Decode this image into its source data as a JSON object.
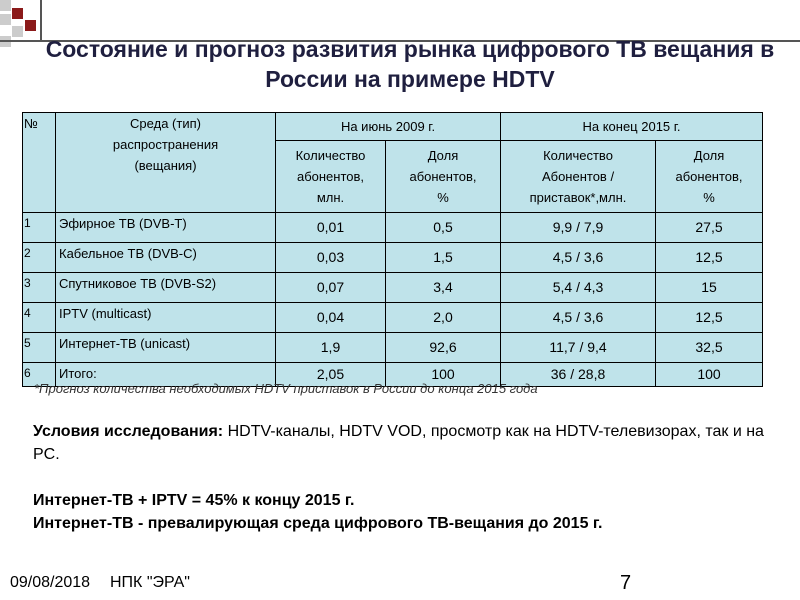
{
  "header": {
    "title": "Состояние и прогноз развития рынка цифрового ТВ вещания в России на примере HDTV"
  },
  "table": {
    "head": [
      "№",
      "Среда (тип)\nраспространения\n(вещания)",
      "На июнь 2009 г.",
      "На конец 2015 г."
    ],
    "subhead": [
      "Количество\nабонентов,\nмлн.",
      "Доля\nабонентов,\n%",
      "Количество\nАбонентов /\nприставок*,млн.",
      "Доля\nабонентов,\n%"
    ],
    "rows": [
      [
        "1",
        "Эфирное ТВ (DVB-T)",
        "0,01",
        "0,5",
        "9,9 / 7,9",
        "27,5"
      ],
      [
        "2",
        "Кабельное ТВ (DVB-C)",
        "0,03",
        "1,5",
        "4,5 / 3,6",
        "12,5"
      ],
      [
        "3",
        "Спутниковое ТВ (DVB-S2)",
        "0,07",
        "3,4",
        "5,4 / 4,3",
        "15"
      ],
      [
        "4",
        "IPTV (multicast)",
        "0,04",
        "2,0",
        "4,5 / 3,6",
        "12,5"
      ],
      [
        "5",
        "Интернет-ТВ (unicast)",
        "1,9",
        "92,6",
        "11,7 / 9,4",
        "32,5"
      ],
      [
        "6",
        "Итого:",
        "2,05",
        "100",
        "36 / 28,8",
        "100"
      ]
    ],
    "footnote": "*Прогноз количества необходимых HDTV приставок в России до конца 2015 года"
  },
  "body": {
    "conditions_label": "Условия исследования:",
    "conditions_text": "HDTV-каналы, HDTV VOD, просмотр как на HDTV-телевизорах, так и на PC.",
    "note1": "Интернет-ТВ + IPTV = 45% к концу 2015 г.",
    "note2": "Интернет-ТВ  - превалирующая среда цифрового ТВ-вещания до 2015 г."
  },
  "footer": {
    "date": "09/08/2018",
    "org": "НПК \"ЭРА\"",
    "page": "7"
  }
}
